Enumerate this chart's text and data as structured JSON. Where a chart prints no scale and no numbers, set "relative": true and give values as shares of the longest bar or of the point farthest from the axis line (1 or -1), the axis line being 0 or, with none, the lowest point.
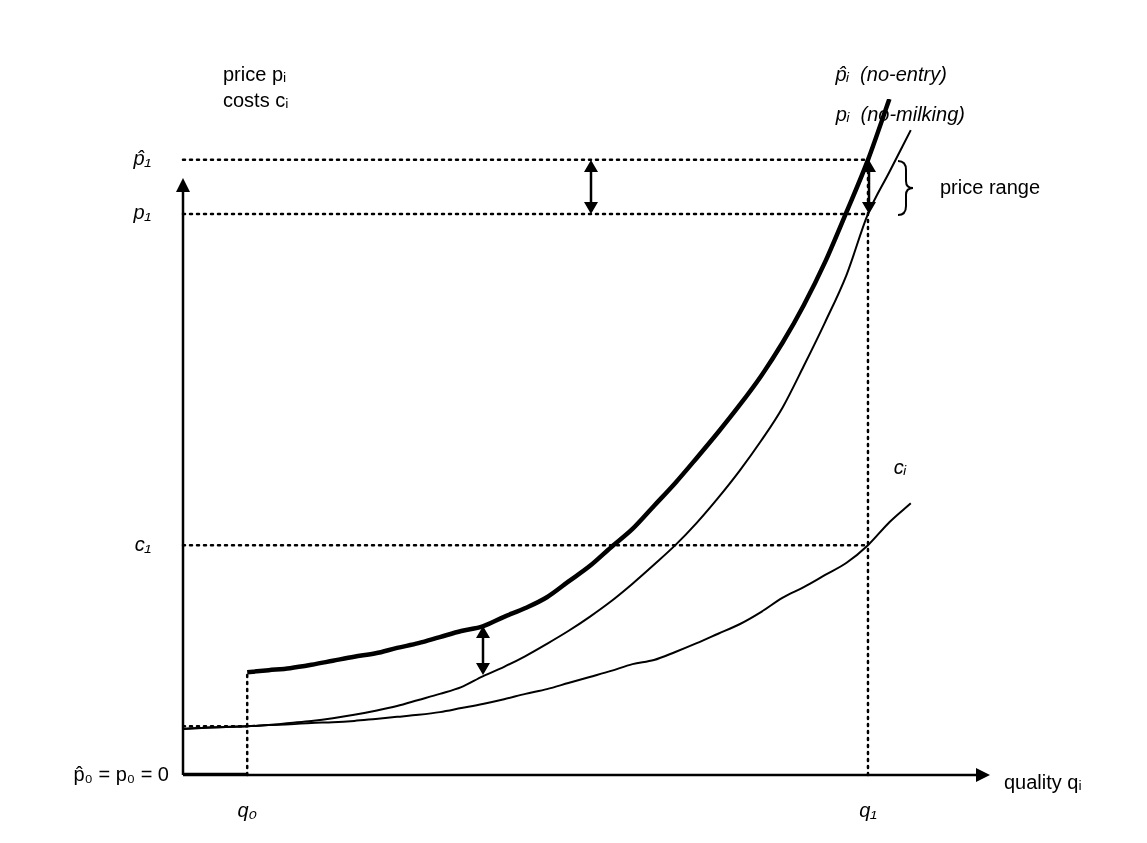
{
  "chart_data": {
    "type": "line",
    "relative": true,
    "marker": "none",
    "xlabel": "quality qᵢ",
    "ylabel": "price pᵢ costs cᵢ",
    "categories": [
      null,
      null,
      null,
      "q₀",
      null,
      null,
      null,
      null,
      null,
      null,
      null,
      null,
      null,
      null,
      null,
      null,
      null,
      null,
      null,
      null,
      null,
      null,
      null,
      null,
      null,
      null,
      null,
      null,
      null,
      null,
      null,
      null,
      "q₁",
      null,
      null,
      null,
      null,
      null
    ],
    "series": [
      {
        "name": "p̂ᵢ  (no-entry)",
        "color": "#000000",
        "values": [
          null,
          null,
          null,
          0.152,
          0.155,
          0.158,
          0.163,
          0.169,
          0.175,
          0.18,
          0.188,
          0.195,
          0.204,
          0.213,
          0.22,
          0.234,
          0.247,
          0.263,
          0.286,
          0.309,
          0.337,
          0.364,
          0.398,
          0.432,
          0.469,
          0.507,
          0.547,
          0.59,
          0.639,
          0.695,
          0.759,
          0.833,
          0.91,
          1.0,
          null,
          null,
          null,
          null
        ]
      },
      {
        "color": "#000000",
        "values": [
          0,
          0,
          0,
          0,
          null,
          null,
          null,
          null,
          null,
          null,
          null,
          null,
          null,
          null,
          null,
          null,
          null,
          null,
          null,
          null,
          null,
          null,
          null,
          null,
          null,
          null,
          null,
          null,
          null,
          null,
          null,
          null,
          null,
          null,
          null,
          null,
          null,
          null
        ]
      },
      {
        "name": "pᵢ  (no-milking)",
        "color": "#000000",
        "values": [
          0.068,
          0.07,
          0.071,
          0.072,
          0.074,
          0.077,
          0.08,
          0.084,
          0.089,
          0.095,
          0.102,
          0.111,
          0.12,
          0.13,
          0.146,
          0.16,
          0.176,
          0.194,
          0.213,
          0.234,
          0.257,
          0.283,
          0.311,
          0.34,
          0.373,
          0.41,
          0.45,
          0.494,
          0.543,
          0.605,
          0.67,
          0.74,
          0.83,
          0.892,
          0.954,
          null,
          null,
          null
        ]
      },
      {
        "name": "cᵢ",
        "color": "#000000",
        "values": [
          0.068,
          0.07,
          0.071,
          0.072,
          0.074,
          0.075,
          0.077,
          0.078,
          0.08,
          0.083,
          0.086,
          0.089,
          0.093,
          0.099,
          0.105,
          0.112,
          0.12,
          0.127,
          0.136,
          0.145,
          0.154,
          0.164,
          0.17,
          0.182,
          0.195,
          0.209,
          0.223,
          0.241,
          0.262,
          0.278,
          0.296,
          0.314,
          0.34,
          0.374,
          0.402,
          null,
          null,
          null
        ]
      },
      {
        "color": "#000000",
        "line_style": "dotted",
        "values": [
          0.072,
          0.072,
          0.072,
          0.072,
          null,
          null,
          null,
          null,
          null,
          null,
          null,
          null,
          null,
          null,
          null,
          null,
          null,
          null,
          null,
          null,
          null,
          null,
          null,
          null,
          null,
          null,
          null,
          null,
          null,
          null,
          null,
          null,
          null,
          null,
          null,
          null,
          null,
          null
        ]
      }
    ],
    "ref_lines": [
      {
        "axis": "x",
        "value": "q₀",
        "color": "#000000",
        "line_style": "dotted"
      },
      {
        "axis": "x",
        "value": "q₁",
        "color": "#000000",
        "line_style": "dotted"
      },
      {
        "axis": "y",
        "value": 0.91,
        "label": "p̂₁",
        "color": "#000000",
        "line_style": "dotted"
      },
      {
        "axis": "y",
        "value": 0.83,
        "label": "p₁",
        "color": "#000000",
        "line_style": "dotted"
      },
      {
        "axis": "y",
        "value": 0.34,
        "label": "c₁",
        "color": "#000000",
        "line_style": "dotted"
      }
    ],
    "annotations": [
      "p̂₀ = p₀ = 0",
      "price range"
    ]
  }
}
